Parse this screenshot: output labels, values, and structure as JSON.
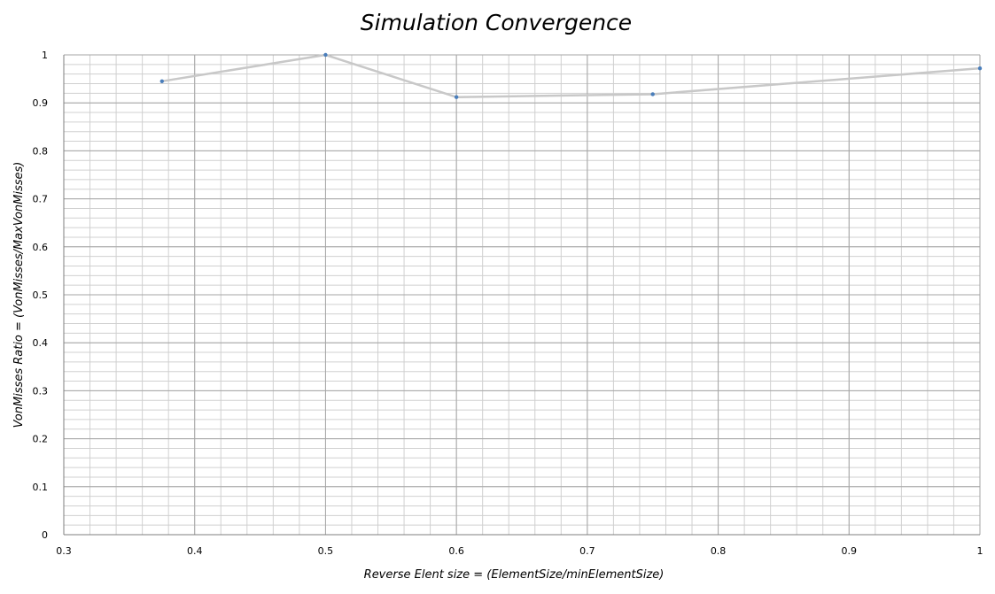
{
  "chart_data": {
    "type": "line",
    "title": "Simulation Convergence",
    "xlabel": "Reverse Elent size = (ElementSize/minElementSize)",
    "ylabel": "VonMisses Ratio = (VonMisses/MaxVonMisses)",
    "xlim": [
      0.3,
      1
    ],
    "ylim": [
      0,
      1
    ],
    "x_ticks": [
      "0.3",
      "0.4",
      "0.5",
      "0.6",
      "0.7",
      "0.8",
      "0.9",
      "1"
    ],
    "y_ticks": [
      "0",
      "0.1",
      "0.2",
      "0.3",
      "0.4",
      "0.5",
      "0.6",
      "0.7",
      "0.8",
      "0.9",
      "1"
    ],
    "grid": true,
    "series": [
      {
        "x": [
          0.375,
          0.5,
          0.6,
          0.75,
          1.0
        ],
        "y": [
          0.945,
          1.0,
          0.912,
          0.918,
          0.972
        ]
      }
    ],
    "colors": {
      "line": "#c8c8c8",
      "marker": "#4a7ebb",
      "grid_major": "#a6a6a6",
      "grid_minor": "#d0d0d0",
      "axis": "#7f7f7f"
    }
  }
}
